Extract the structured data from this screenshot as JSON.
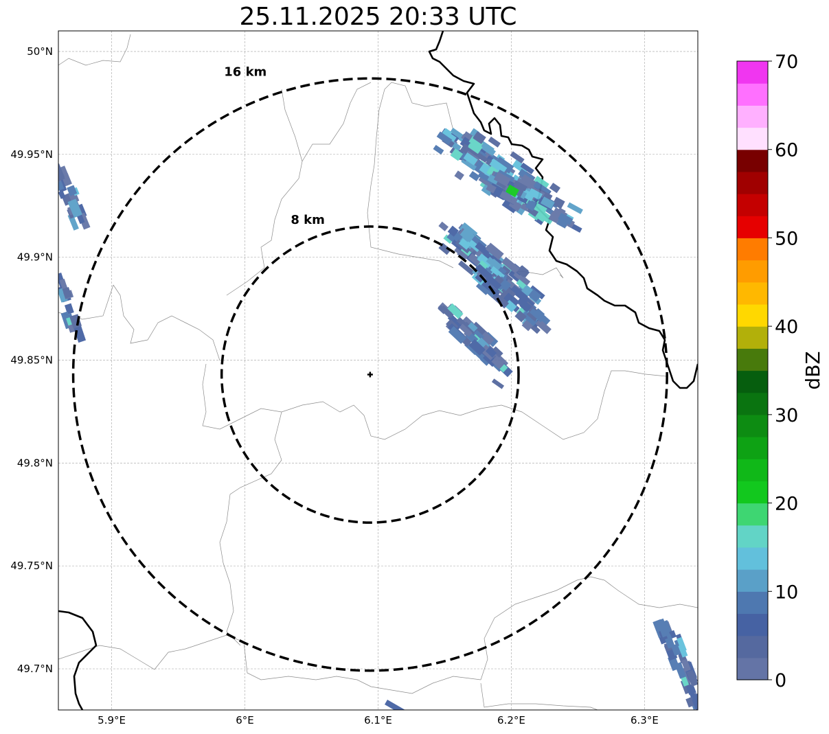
{
  "title": "25.11.2025 20:33 UTC",
  "map": {
    "lon_range": [
      5.86,
      6.34
    ],
    "lat_range": [
      49.68,
      50.01
    ],
    "lon_ticks": [
      {
        "value": 5.9,
        "label": "5.9°E"
      },
      {
        "value": 6.0,
        "label": "6°E"
      },
      {
        "value": 6.1,
        "label": "6.1°E"
      },
      {
        "value": 6.2,
        "label": "6.2°E"
      },
      {
        "value": 6.3,
        "label": "6.3°E"
      }
    ],
    "lat_ticks": [
      {
        "value": 50.0,
        "label": "50°N"
      },
      {
        "value": 49.95,
        "label": "49.95°N"
      },
      {
        "value": 49.9,
        "label": "49.9°N"
      },
      {
        "value": 49.85,
        "label": "49.85°N"
      },
      {
        "value": 49.8,
        "label": "49.8°N"
      },
      {
        "value": 49.75,
        "label": "49.75°N"
      },
      {
        "value": 49.7,
        "label": "49.7°N"
      }
    ],
    "grid": "on",
    "radar_site": {
      "lon": 6.094,
      "lat": 49.843
    },
    "range_rings": [
      {
        "label": "8 km",
        "radius_km": 8
      },
      {
        "label": "16 km",
        "radius_km": 16
      }
    ]
  },
  "colorbar": {
    "label": "dBZ",
    "range": [
      0,
      70
    ],
    "ticks": [
      {
        "value": 0,
        "label": "0"
      },
      {
        "value": 10,
        "label": "10"
      },
      {
        "value": 20,
        "label": "20"
      },
      {
        "value": 30,
        "label": "30"
      },
      {
        "value": 40,
        "label": "40"
      },
      {
        "value": 50,
        "label": "50"
      },
      {
        "value": 60,
        "label": "60"
      },
      {
        "value": 70,
        "label": "70"
      }
    ],
    "colors": [
      "#6474a6",
      "#55699f",
      "#4662a3",
      "#4e78b0",
      "#5aa0c8",
      "#62c0dc",
      "#62d4c6",
      "#3ed672",
      "#12c81e",
      "#10b818",
      "#0ea214",
      "#0d8c12",
      "#0a7410",
      "#065e0e",
      "#487a0c",
      "#b2b00a",
      "#ffd800",
      "#ffb800",
      "#ff9c00",
      "#ff7c00",
      "#e60000",
      "#c40000",
      "#a00000",
      "#780000",
      "#ffe0ff",
      "#ffb0ff",
      "#ff70ff",
      "#f036f0"
    ]
  }
}
